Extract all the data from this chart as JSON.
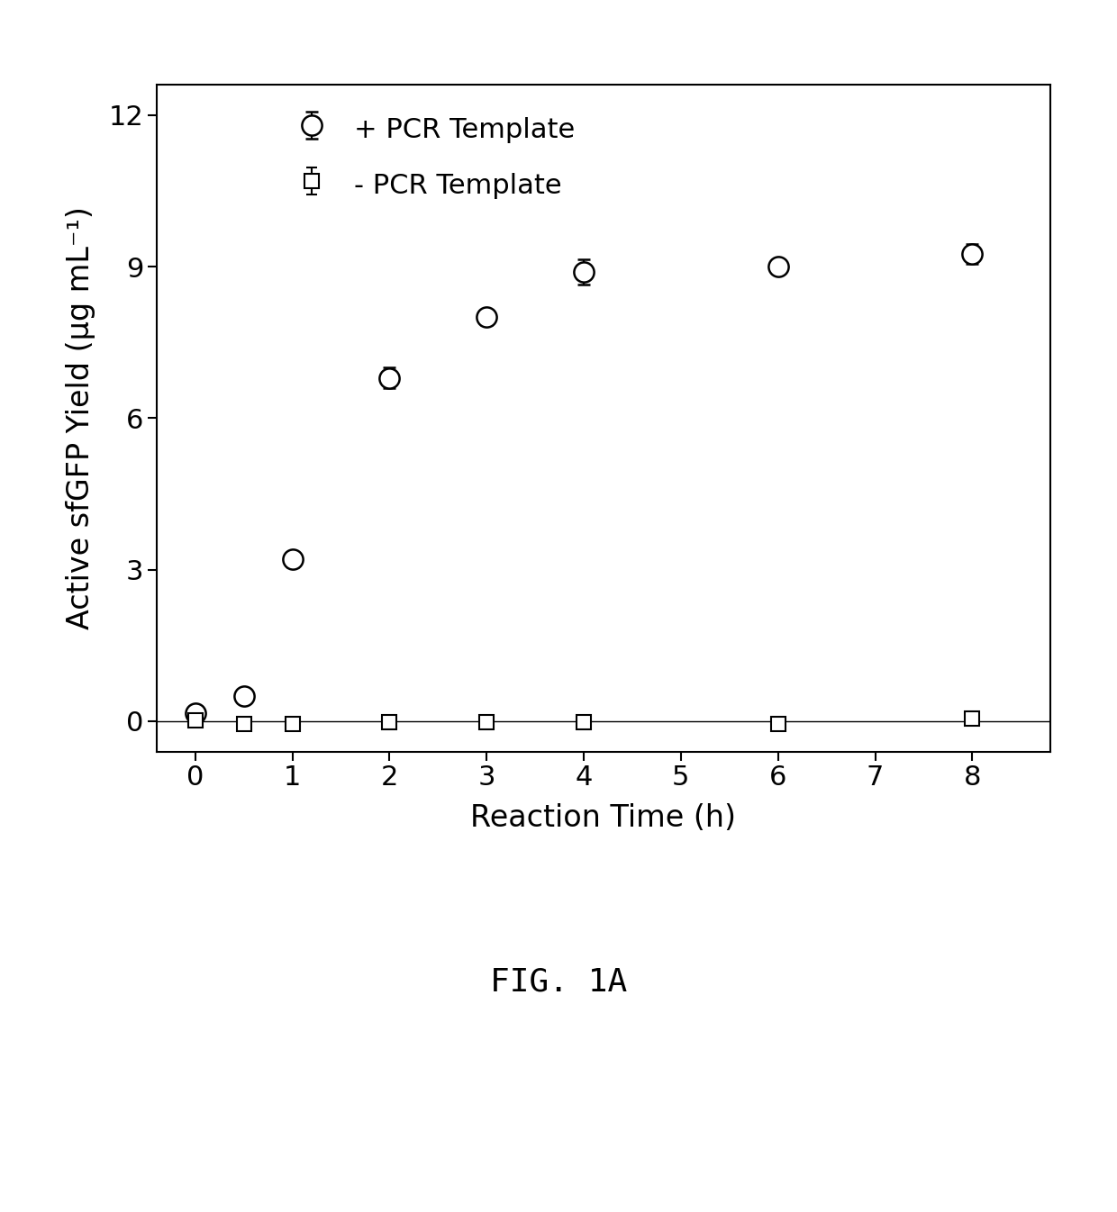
{
  "plus_x": [
    0,
    0.5,
    1,
    2,
    3,
    4,
    6,
    8
  ],
  "plus_y": [
    0.15,
    0.5,
    3.2,
    6.8,
    8.0,
    8.9,
    9.0,
    9.25
  ],
  "plus_yerr": [
    0.05,
    0.1,
    0.15,
    0.2,
    0.15,
    0.25,
    0.1,
    0.2
  ],
  "minus_x": [
    0,
    0.5,
    1,
    2,
    3,
    4,
    6,
    8
  ],
  "minus_y": [
    0.02,
    -0.05,
    -0.05,
    -0.02,
    -0.02,
    -0.02,
    -0.05,
    0.05
  ],
  "minus_yerr": [
    0.05,
    0.05,
    0.05,
    0.03,
    0.03,
    0.03,
    0.03,
    0.05
  ],
  "xlabel": "Reaction Time (h)",
  "ylabel": "Active sfGFP Yield (μg mL⁻¹)",
  "ylim": [
    -0.6,
    12.6
  ],
  "xlim": [
    -0.4,
    8.8
  ],
  "yticks": [
    0,
    3,
    6,
    9,
    12
  ],
  "xticks": [
    0,
    1,
    2,
    3,
    4,
    5,
    6,
    7,
    8
  ],
  "legend_plus": "+ PCR Template",
  "legend_minus": "- PCR Template",
  "fig_label": "FIG. 1A",
  "background_color": "#ffffff"
}
